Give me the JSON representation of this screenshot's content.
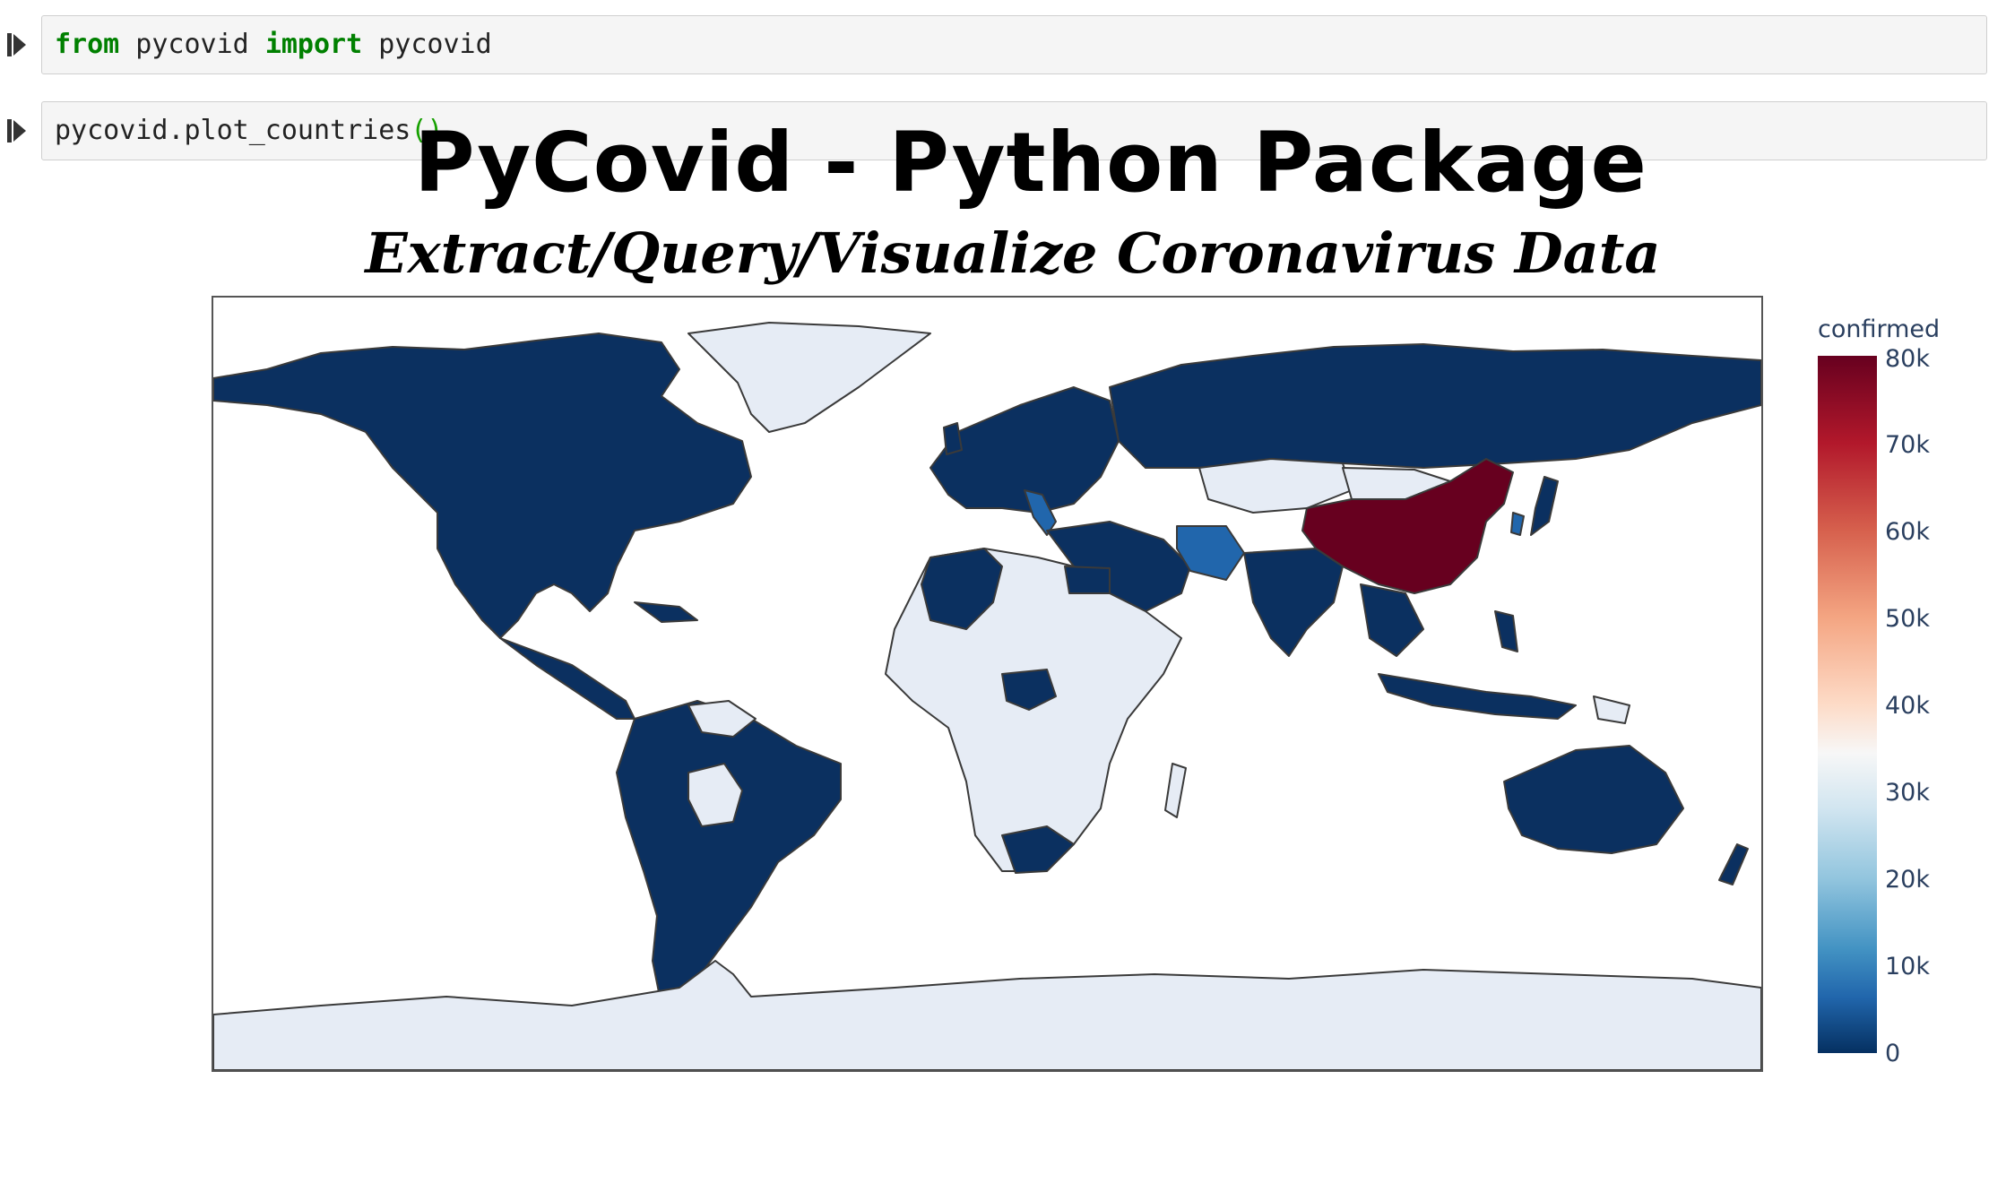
{
  "cells": [
    {
      "tokens": [
        {
          "kw": "from"
        },
        {
          "t": " pycovid "
        },
        {
          "kw": "import"
        },
        {
          "t": " pycovid"
        }
      ]
    },
    {
      "prefix": "pycovid.plot_countries",
      "parens": "()"
    }
  ],
  "figure": {
    "title": "PyCovid - Python Package",
    "subtitle": "Extract/Query/Visualize Coronavirus Data"
  },
  "chart_data": {
    "type": "choropleth",
    "projection": "equirectangular world map",
    "metric": "confirmed",
    "colorscale": "RdBu (reversed)",
    "range": [
      0,
      80000
    ],
    "colorbar": {
      "title": "confirmed",
      "ticks": [
        "80k",
        "70k",
        "60k",
        "50k",
        "40k",
        "30k",
        "20k",
        "10k",
        "0"
      ]
    },
    "colors": {
      "low": "#0b3060",
      "mid_blue": "#2166ac",
      "near_zero_light": "#e6ecf5",
      "high": "#67001f",
      "border": "#3a3a3a"
    },
    "regions": [
      {
        "name": "China",
        "value": 80000
      },
      {
        "name": "Iran",
        "value": 12000
      },
      {
        "name": "Italy",
        "value": 8000
      },
      {
        "name": "Greenland",
        "value": null
      },
      {
        "name": "Africa (most countries)",
        "value": null
      },
      {
        "name": "Antarctica",
        "value": null
      },
      {
        "name": "Other reporting countries",
        "value": 0
      }
    ]
  }
}
